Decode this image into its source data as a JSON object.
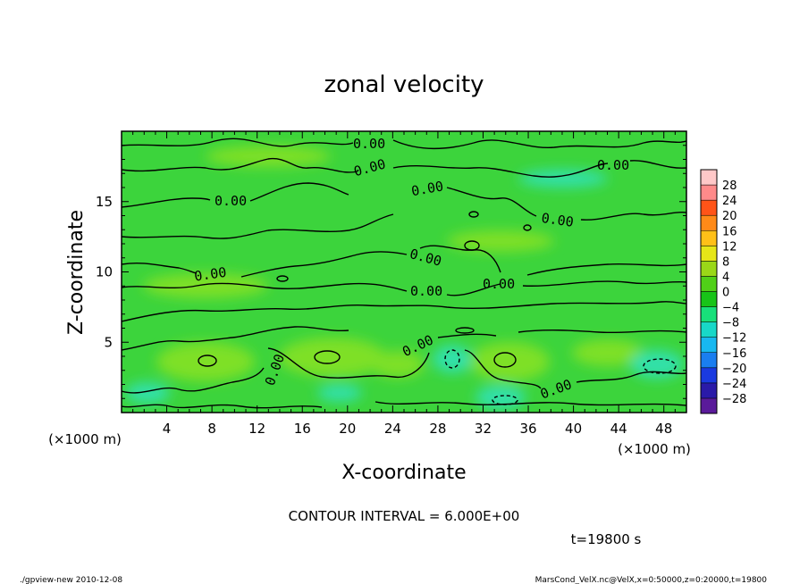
{
  "chart_data": {
    "type": "heatmap",
    "title": "zonal velocity",
    "xlabel": "X-coordinate",
    "ylabel": "Z-coordinate",
    "x_unit": "(×1000 m)",
    "y_unit": "(×1000 m)",
    "xlim": [
      0,
      50
    ],
    "ylim": [
      0,
      20
    ],
    "x_ticks": [
      4,
      8,
      12,
      16,
      20,
      24,
      28,
      32,
      36,
      40,
      44,
      48
    ],
    "y_ticks": [
      5,
      10,
      15
    ],
    "contour_interval_text": "CONTOUR INTERVAL = 6.000E+00",
    "time_text": "t=19800 s",
    "contour_labels": [
      "0.00",
      "0.00",
      "0.00",
      "0.00",
      "0.00",
      "0.00",
      "0.00",
      "0.00",
      "0.00",
      "0.00",
      "0.00",
      "0.00",
      "0.00"
    ],
    "colorbar": {
      "levels": [
        -28,
        -24,
        -20,
        -16,
        -12,
        -8,
        -4,
        0,
        4,
        8,
        12,
        16,
        20,
        24,
        28
      ],
      "colors": [
        "#5a1a9a",
        "#2a1aa8",
        "#1a3ae0",
        "#1a7ef0",
        "#18b8f0",
        "#18d8c8",
        "#18e07a",
        "#18c418",
        "#50d018",
        "#9ad818",
        "#e6e618",
        "#ffc018",
        "#ff8a18",
        "#ff5418",
        "#ff8a8a",
        "#ffc8c8"
      ]
    },
    "field_colors": {
      "background": "#3cd43c",
      "positive_band": "#7ee028",
      "negative_patch": "#30e0a8"
    }
  },
  "footer": {
    "left": "./gpview-new  2010-12-08",
    "right": "MarsCond_VelX.nc@VelX,x=0:50000,z=0:20000,t=19800"
  }
}
